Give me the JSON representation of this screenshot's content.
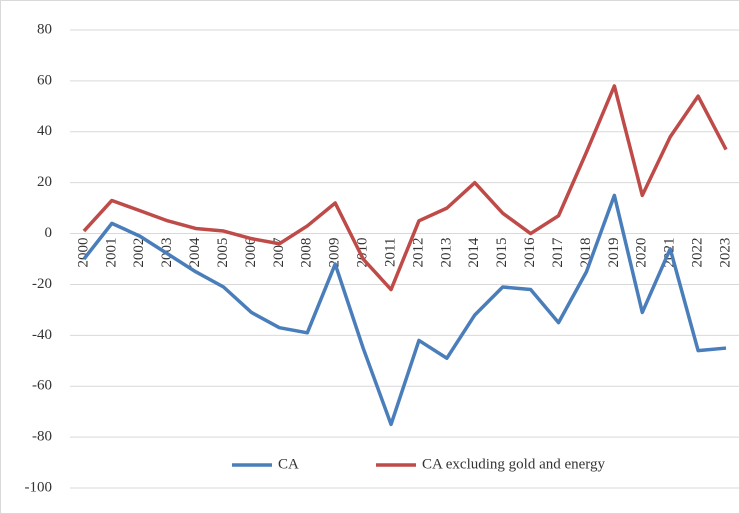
{
  "chart_data": {
    "type": "line",
    "categories": [
      "2000",
      "2001",
      "2002",
      "2003",
      "2004",
      "2005",
      "2006",
      "2007",
      "2008",
      "2009",
      "2010",
      "2011",
      "2012",
      "2013",
      "2014",
      "2015",
      "2016",
      "2017",
      "2018",
      "2019",
      "2020",
      "2021",
      "2022",
      "2023"
    ],
    "series": [
      {
        "name": "CA",
        "color": "#4a7ebb",
        "values": [
          -10,
          4,
          -1,
          -8,
          -15,
          -21,
          -31,
          -37,
          -39,
          -12,
          -45,
          -75,
          -42,
          -49,
          -32,
          -21,
          -22,
          -35,
          -15,
          15,
          -31,
          -6,
          -46,
          -45
        ]
      },
      {
        "name": "CA excluding gold and energy",
        "color": "#be4b48",
        "values": [
          1,
          13,
          9,
          5,
          2,
          1,
          -2,
          -4,
          3,
          12,
          -10,
          -22,
          5,
          10,
          20,
          8,
          0,
          7,
          32,
          58,
          15,
          38,
          54,
          33
        ]
      }
    ],
    "ylim": [
      -100,
      80
    ],
    "yticks": [
      -100,
      -80,
      -60,
      -40,
      -20,
      0,
      20,
      40,
      60,
      80
    ],
    "grid": true,
    "legend": "bottom"
  }
}
